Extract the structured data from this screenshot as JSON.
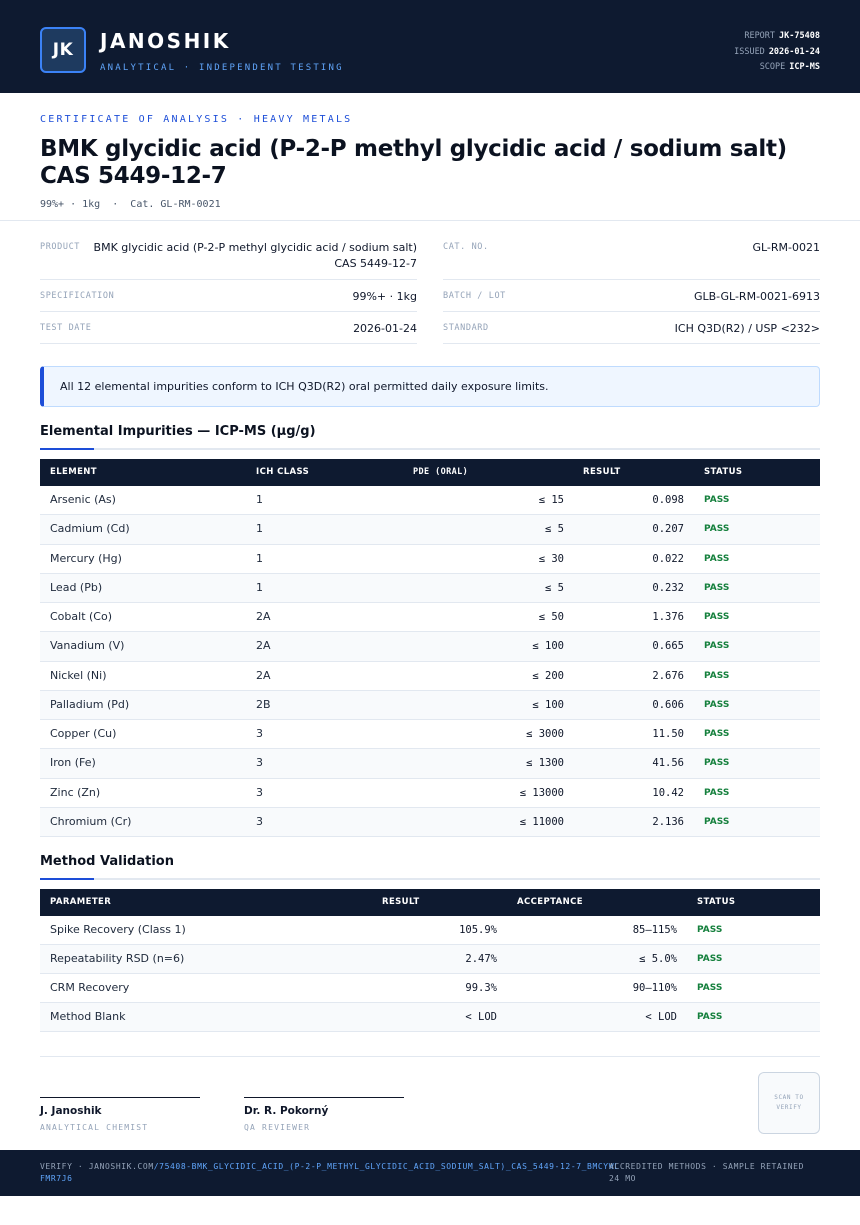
{
  "header": {
    "logo_text": "JK",
    "brand": "JANOSHIK",
    "tagline": "ANALYTICAL · INDEPENDENT TESTING",
    "report_label": "REPORT",
    "report_value": "JK-75408",
    "issued_label": "ISSUED",
    "issued_value": "2026-01-24",
    "scope_label": "SCOPE",
    "scope_value": "ICP-MS"
  },
  "title_block": {
    "kicker": "CERTIFICATE OF ANALYSIS · HEAVY METALS",
    "title_line1": "BMK glycidic acid (P-2-P methyl glycidic acid / sodium salt)",
    "title_line2": "CAS 5449-12-7",
    "subline": "99%+ · 1kg  ·  Cat. GL-RM-0021"
  },
  "info": {
    "product_label": "PRODUCT",
    "product_line1": "BMK glycidic acid (P-2-P methyl glycidic acid / sodium salt)",
    "product_line2": "CAS 5449-12-7",
    "cat_label": "CAT. NO.",
    "cat_value": "GL-RM-0021",
    "spec_label": "SPECIFICATION",
    "spec_value": "99%+ · 1kg",
    "batch_label": "BATCH / LOT",
    "batch_value": "GLB-GL-RM-0021-6913",
    "date_label": "TEST DATE",
    "date_value": "2026-01-24",
    "standard_label": "STANDARD",
    "standard_value": "ICH Q3D(R2) / USP <232>"
  },
  "notice": "All 12 elemental impurities conform to ICH Q3D(R2) oral permitted daily exposure limits.",
  "impurities": {
    "title": "Elemental Impurities — ICP-MS (µg/g)",
    "columns": [
      "ELEMENT",
      "ICH CLASS",
      "PDE (ORAL)",
      "RESULT",
      "STATUS"
    ],
    "rows": [
      {
        "element": "Arsenic (As)",
        "class": "1",
        "pde": "≤ 15",
        "result": "0.098",
        "status": "PASS"
      },
      {
        "element": "Cadmium (Cd)",
        "class": "1",
        "pde": "≤ 5",
        "result": "0.207",
        "status": "PASS"
      },
      {
        "element": "Mercury (Hg)",
        "class": "1",
        "pde": "≤ 30",
        "result": "0.022",
        "status": "PASS"
      },
      {
        "element": "Lead (Pb)",
        "class": "1",
        "pde": "≤ 5",
        "result": "0.232",
        "status": "PASS"
      },
      {
        "element": "Cobalt (Co)",
        "class": "2A",
        "pde": "≤ 50",
        "result": "1.376",
        "status": "PASS"
      },
      {
        "element": "Vanadium (V)",
        "class": "2A",
        "pde": "≤ 100",
        "result": "0.665",
        "status": "PASS"
      },
      {
        "element": "Nickel (Ni)",
        "class": "2A",
        "pde": "≤ 200",
        "result": "2.676",
        "status": "PASS"
      },
      {
        "element": "Palladium (Pd)",
        "class": "2B",
        "pde": "≤ 100",
        "result": "0.606",
        "status": "PASS"
      },
      {
        "element": "Copper (Cu)",
        "class": "3",
        "pde": "≤ 3000",
        "result": "11.50",
        "status": "PASS"
      },
      {
        "element": "Iron (Fe)",
        "class": "3",
        "pde": "≤ 1300",
        "result": "41.56",
        "status": "PASS"
      },
      {
        "element": "Zinc (Zn)",
        "class": "3",
        "pde": "≤ 13000",
        "result": "10.42",
        "status": "PASS"
      },
      {
        "element": "Chromium (Cr)",
        "class": "3",
        "pde": "≤ 11000",
        "result": "2.136",
        "status": "PASS"
      }
    ]
  },
  "validation": {
    "title": "Method Validation",
    "columns": [
      "PARAMETER",
      "RESULT",
      "ACCEPTANCE",
      "STATUS"
    ],
    "rows": [
      {
        "parameter": "Spike Recovery (Class 1)",
        "result": "105.9%",
        "acceptance": "85–115%",
        "status": "PASS"
      },
      {
        "parameter": "Repeatability RSD (n=6)",
        "result": "2.47%",
        "acceptance": "≤ 5.0%",
        "status": "PASS"
      },
      {
        "parameter": "CRM Recovery",
        "result": "99.3%",
        "acceptance": "90–110%",
        "status": "PASS"
      },
      {
        "parameter": "Method Blank",
        "result": "< LOD",
        "acceptance": "< LOD",
        "status": "PASS"
      }
    ]
  },
  "signatures": [
    {
      "name": "J. Janoshik",
      "role": "ANALYTICAL CHEMIST"
    },
    {
      "name": "Dr. R. Pokorný",
      "role": "QA REVIEWER"
    }
  ],
  "qr_text": "SCAN TO VERIFY",
  "footer": {
    "verify_prefix": "VERIFY · JANOSHIK.COM",
    "verify_path": "/75408-BMK_GLYCIDIC_ACID_(P-2-P_METHYL_GLYCIDIC_ACID_SODIUM_SALT)_CAS_5449-12-7_BMCYWLFMR7J6",
    "right_text": "ACCREDITED METHODS · SAMPLE RETAINED 24 MO"
  },
  "colors": {
    "navy": "#0e1a30",
    "accent": "#1d4ed8",
    "pass": "#15803d"
  }
}
